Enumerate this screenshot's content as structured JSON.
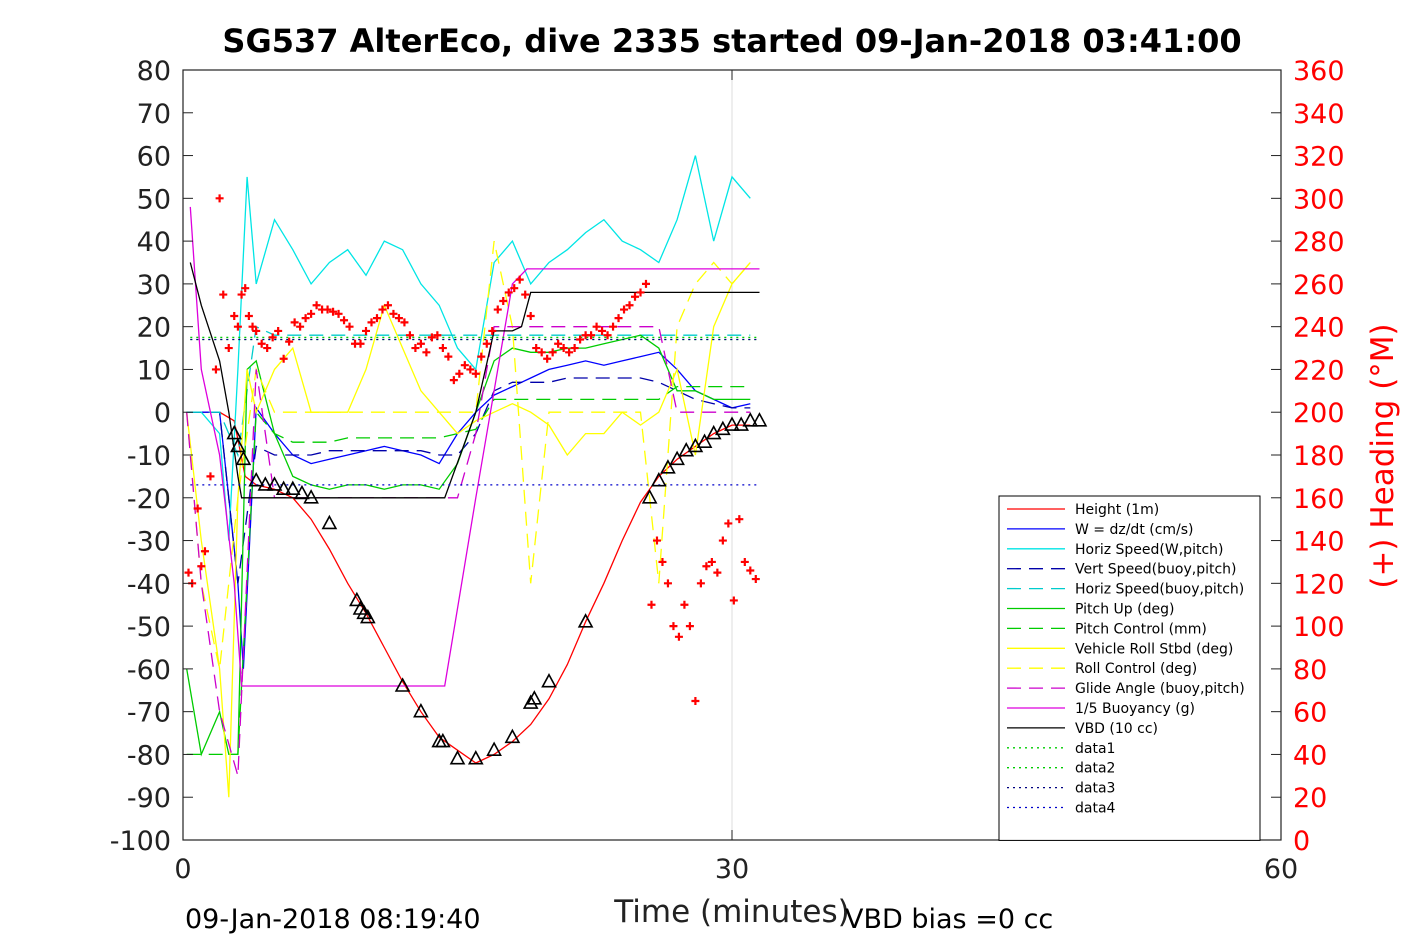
{
  "chart_data": {
    "type": "line",
    "title": "SG537 AlterEco, dive 2335 started 09-Jan-2018 03:41:00",
    "xlabel": "Time (minutes)",
    "ylabel_right": "(+) Heading (°M)",
    "xlim": [
      0,
      60
    ],
    "ylim": [
      -100,
      80
    ],
    "ylim_right": [
      0,
      360
    ],
    "x_ticks": [
      "0",
      "30",
      "60"
    ],
    "y_ticks": [
      "80",
      "70",
      "60",
      "50",
      "40",
      "30",
      "20",
      "10",
      "0",
      "-10",
      "-20",
      "-30",
      "-40",
      "-50",
      "-60",
      "-70",
      "-80",
      "-90",
      "-100"
    ],
    "y_ticks_right": [
      "360",
      "340",
      "320",
      "300",
      "280",
      "260",
      "240",
      "220",
      "200",
      "180",
      "160",
      "140",
      "120",
      "100",
      "80",
      "60",
      "40",
      "20",
      "0"
    ],
    "grid": "x-only at 30",
    "legend_placement": "lower-right",
    "footer_left": "09-Jan-2018 08:19:40",
    "footer_right": "VBD bias =0 cc",
    "series": [
      {
        "name": "Height (1m)",
        "color": "#ff0000",
        "dash": "solid",
        "x": [
          0.2,
          1,
          2,
          2.8,
          3.4,
          4,
          5,
          6,
          7,
          8,
          9,
          10,
          11,
          12,
          13,
          14,
          15,
          16,
          17,
          18,
          19,
          20,
          21,
          22,
          23,
          24,
          25,
          26,
          27,
          28,
          29,
          30,
          31
        ],
        "y": [
          0,
          0,
          0,
          -2,
          -15,
          -17,
          -18,
          -20,
          -25,
          -32,
          -40,
          -47,
          -55,
          -63,
          -70,
          -76,
          -79,
          -82,
          -80,
          -77,
          -73,
          -67,
          -59,
          -49,
          -40,
          -30,
          -21,
          -15,
          -11,
          -8,
          -5,
          -3,
          -3
        ]
      },
      {
        "name": "W = dz/dt (cm/s)",
        "color": "#0000ff",
        "dash": "solid",
        "x": [
          0.2,
          1,
          2,
          2.5,
          3,
          3.3,
          4,
          5,
          6,
          7,
          8,
          9,
          10,
          11,
          12,
          13,
          14,
          15,
          16,
          17,
          18,
          19,
          20,
          21,
          22,
          23,
          24,
          25,
          26,
          27,
          28,
          29,
          30,
          31
        ],
        "y": [
          0,
          0,
          0,
          -20,
          -40,
          -60,
          1,
          -5,
          -10,
          -12,
          -11,
          -10,
          -9,
          -8,
          -9,
          -10,
          -12,
          -5,
          0,
          4,
          6,
          8,
          10,
          11,
          12,
          11,
          12,
          13,
          14,
          10,
          5,
          3,
          1,
          2
        ]
      },
      {
        "name": "Horiz Speed(W,pitch)",
        "color": "#00e5e5",
        "dash": "solid",
        "x": [
          0.2,
          1,
          2,
          2.5,
          3,
          3.5,
          4,
          5,
          6,
          7,
          8,
          9,
          10,
          11,
          12,
          13,
          14,
          15,
          16,
          17,
          18,
          19,
          20,
          21,
          22,
          23,
          24,
          25,
          26,
          27,
          28,
          29,
          30,
          31
        ],
        "y": [
          0,
          0,
          -5,
          -30,
          10,
          55,
          30,
          45,
          38,
          30,
          35,
          38,
          32,
          40,
          38,
          30,
          25,
          15,
          10,
          35,
          40,
          30,
          35,
          38,
          42,
          45,
          40,
          38,
          35,
          45,
          60,
          40,
          55,
          50
        ]
      },
      {
        "name": "Vert Speed(buoy,pitch)",
        "color": "#0000aa",
        "dash": "long",
        "x": [
          0.2,
          1,
          2,
          3,
          4,
          5,
          6,
          7,
          8,
          9,
          10,
          11,
          12,
          13,
          14,
          15,
          16,
          17,
          18,
          19,
          20,
          21,
          22,
          23,
          24,
          25,
          26,
          27,
          28,
          29,
          30,
          31
        ],
        "y": [
          0,
          0,
          0,
          -40,
          -8,
          -10,
          -10,
          -10,
          -9,
          -9,
          -9,
          -9,
          -9,
          -9,
          -10,
          -10,
          -5,
          5,
          7,
          7,
          7,
          8,
          8,
          8,
          8,
          8,
          7,
          5,
          3,
          2,
          1,
          1
        ]
      },
      {
        "name": "Horiz Speed(buoy,pitch)",
        "color": "#00cccc",
        "dash": "long",
        "x": [
          0.2,
          1,
          2,
          3,
          4,
          5,
          6,
          7,
          8,
          9,
          10,
          11,
          12,
          13,
          14,
          15,
          16,
          17,
          18,
          19,
          20,
          21,
          22,
          23,
          24,
          25,
          26,
          27,
          28,
          29,
          30,
          31
        ],
        "y": [
          0,
          0,
          0,
          -10,
          20,
          18,
          18,
          18,
          18,
          18,
          18,
          18,
          18,
          18,
          18,
          18,
          18,
          18,
          18,
          18,
          18,
          18,
          18,
          18,
          18,
          18,
          18,
          18,
          18,
          18,
          18,
          18
        ]
      },
      {
        "name": "Pitch Up (deg)",
        "color": "#00cc00",
        "dash": "solid",
        "x": [
          0.2,
          1,
          2,
          2.5,
          3,
          3.5,
          4,
          5,
          6,
          7,
          8,
          9,
          10,
          11,
          12,
          13,
          14,
          15,
          16,
          17,
          18,
          19,
          20,
          21,
          22,
          23,
          24,
          25,
          26,
          27,
          28,
          29,
          30,
          31
        ],
        "y": [
          -60,
          -80,
          -70,
          -80,
          -80,
          10,
          12,
          -5,
          -15,
          -17,
          -18,
          -17,
          -17,
          -18,
          -17,
          -17,
          -18,
          -12,
          0,
          12,
          15,
          14,
          14,
          15,
          15,
          16,
          17,
          18,
          15,
          5,
          5,
          3,
          3,
          3
        ]
      },
      {
        "name": "Pitch Control (mm)",
        "color": "#00cc00",
        "dash": "long",
        "x": [
          0.2,
          1,
          2,
          3,
          4,
          5,
          6,
          7,
          8,
          9,
          10,
          11,
          12,
          13,
          14,
          15,
          16,
          17,
          18,
          19,
          20,
          21,
          22,
          23,
          24,
          25,
          26,
          27,
          28,
          29,
          30,
          31
        ],
        "y": [
          -80,
          -80,
          -80,
          -80,
          0,
          -5,
          -7,
          -7,
          -7,
          -6,
          -6,
          -6,
          -6,
          -6,
          -6,
          -5,
          -4,
          3,
          3,
          3,
          3,
          3,
          3,
          3,
          3,
          3,
          3,
          6,
          6,
          6,
          6,
          6
        ]
      },
      {
        "name": "Vehicle Roll Stbd (deg)",
        "color": "#ffff00",
        "dash": "solid",
        "x": [
          0.2,
          1,
          2,
          2.5,
          3,
          3.5,
          4,
          5,
          6,
          7,
          8,
          9,
          10,
          11,
          12,
          13,
          14,
          15,
          16,
          17,
          18,
          19,
          20,
          21,
          22,
          23,
          24,
          25,
          26,
          27,
          28,
          29,
          30,
          31
        ],
        "y": [
          0,
          -30,
          -60,
          -90,
          -20,
          10,
          0,
          10,
          15,
          0,
          0,
          0,
          10,
          25,
          15,
          5,
          0,
          -5,
          -2,
          0,
          2,
          0,
          -3,
          -10,
          -5,
          -5,
          0,
          -3,
          0,
          10,
          -10,
          20,
          30,
          35
        ]
      },
      {
        "name": "Roll Control (deg)",
        "color": "#ffff00",
        "dash": "long",
        "x": [
          0.2,
          1,
          2,
          3,
          4,
          5,
          6,
          7,
          8,
          9,
          10,
          11,
          12,
          13,
          14,
          15,
          16,
          17,
          18,
          19,
          20,
          21,
          22,
          23,
          24,
          25,
          26,
          27,
          28,
          29,
          30,
          31
        ],
        "y": [
          0,
          -40,
          -60,
          -20,
          10,
          0,
          0,
          0,
          0,
          0,
          0,
          0,
          0,
          0,
          0,
          0,
          0,
          40,
          20,
          -40,
          0,
          0,
          0,
          0,
          0,
          0,
          -40,
          20,
          30,
          35,
          30,
          35
        ]
      },
      {
        "name": "Glide Angle (buoy,pitch)",
        "color": "#cc00cc",
        "dash": "long",
        "x": [
          0.2,
          1,
          2,
          3,
          4,
          5,
          6,
          7,
          8,
          9,
          10,
          11,
          12,
          13,
          14,
          15,
          16,
          17,
          18,
          19,
          20,
          21,
          22,
          23,
          24,
          25,
          26,
          27,
          28,
          29,
          30,
          31
        ],
        "y": [
          0,
          -40,
          -70,
          -85,
          10,
          -20,
          -20,
          -20,
          -20,
          -20,
          -20,
          -20,
          -20,
          -20,
          -20,
          -20,
          -5,
          20,
          20,
          20,
          20,
          20,
          20,
          20,
          20,
          20,
          20,
          0,
          0,
          0,
          0,
          0
        ]
      },
      {
        "name": "1/5 Buoyancy (g)",
        "color": "#dd00dd",
        "dash": "solid",
        "x": [
          0.4,
          1,
          2,
          2.8,
          3.2,
          4,
          6,
          8,
          10,
          12,
          14,
          14.3,
          16,
          18,
          18.8,
          20,
          22,
          24,
          26,
          28,
          30,
          31.5
        ],
        "y": [
          48,
          10,
          -10,
          -40,
          -64,
          -64,
          -64,
          -64,
          -64,
          -64,
          -64,
          -64,
          -20,
          30,
          33.5,
          33.5,
          33.5,
          33.5,
          33.5,
          33.5,
          33.5,
          33.5
        ]
      },
      {
        "name": "VBD (10 cc)",
        "color": "#000000",
        "dash": "solid",
        "x": [
          0.4,
          1,
          2,
          2.5,
          3,
          3.2,
          4,
          6,
          8,
          10,
          12,
          14,
          14.3,
          16,
          17,
          18,
          18.5,
          19,
          20,
          22,
          24,
          26,
          28,
          30,
          31.5
        ],
        "y": [
          35,
          25,
          12,
          0,
          -15,
          -20,
          -20,
          -20,
          -20,
          -20,
          -20,
          -20,
          -20,
          0,
          19,
          19,
          20,
          28,
          28,
          28,
          28,
          28,
          28,
          28,
          28
        ]
      },
      {
        "name": "data1",
        "color": "#00cc00",
        "dash": "dot",
        "x": [
          0.4,
          31.5
        ],
        "y": [
          17.5,
          17.5
        ]
      },
      {
        "name": "data2",
        "color": "#00cc00",
        "dash": "dot",
        "x": [
          0.4,
          31.5
        ],
        "y": [
          17,
          17
        ]
      },
      {
        "name": "data3",
        "color": "#000080",
        "dash": "dot",
        "x": [
          0.4,
          31.5
        ],
        "y": [
          17,
          17
        ]
      },
      {
        "name": "data4",
        "color": "#0000cc",
        "dash": "dot",
        "x": [
          0.4,
          31.5
        ],
        "y": [
          -17,
          -17
        ]
      }
    ],
    "heading_series": {
      "color": "#ff0000",
      "marker": "+",
      "x": [
        0.3,
        0.5,
        0.8,
        1.0,
        1.2,
        1.5,
        1.8,
        2.0,
        2.2,
        2.5,
        2.8,
        3.0,
        3.2,
        3.4,
        3.6,
        3.8,
        4.0,
        4.3,
        4.6,
        4.9,
        5.2,
        5.5,
        5.8,
        6.1,
        6.4,
        6.7,
        7.0,
        7.3,
        7.6,
        7.9,
        8.2,
        8.5,
        8.8,
        9.1,
        9.4,
        9.7,
        10.0,
        10.3,
        10.6,
        10.9,
        11.2,
        11.5,
        11.8,
        12.1,
        12.4,
        12.7,
        13.0,
        13.3,
        13.6,
        13.9,
        14.2,
        14.5,
        14.8,
        15.1,
        15.4,
        15.7,
        16.0,
        16.3,
        16.6,
        16.9,
        17.2,
        17.5,
        17.8,
        18.1,
        18.4,
        18.7,
        19.0,
        19.3,
        19.6,
        19.9,
        20.2,
        20.5,
        20.8,
        21.1,
        21.4,
        21.7,
        22.0,
        22.3,
        22.6,
        22.9,
        23.2,
        23.5,
        23.8,
        24.1,
        24.4,
        24.7,
        25.0,
        25.3,
        25.6,
        25.9,
        26.2,
        26.5,
        26.8,
        27.1,
        27.4,
        27.7,
        28.0,
        28.3,
        28.6,
        28.9,
        29.2,
        29.5,
        29.8,
        30.1,
        30.4,
        30.7,
        31.0,
        31.3
      ],
      "y": [
        125,
        120,
        155,
        128,
        135,
        170,
        220,
        300,
        255,
        230,
        245,
        240,
        255,
        258,
        245,
        240,
        238,
        232,
        230,
        235,
        238,
        225,
        233,
        242,
        240,
        244,
        246,
        250,
        248,
        248,
        247,
        246,
        243,
        240,
        232,
        232,
        238,
        242,
        244,
        248,
        250,
        246,
        244,
        242,
        236,
        230,
        232,
        228,
        235,
        236,
        230,
        226,
        215,
        218,
        222,
        220,
        218,
        226,
        232,
        238,
        248,
        252,
        256,
        258,
        262,
        255,
        245,
        230,
        228,
        225,
        228,
        232,
        230,
        228,
        230,
        234,
        236,
        236,
        240,
        238,
        236,
        240,
        244,
        248,
        250,
        254,
        256,
        260,
        110,
        140,
        130,
        120,
        100,
        95,
        110,
        100,
        65,
        120,
        128,
        130,
        125,
        140,
        148,
        112,
        150,
        130,
        126,
        122
      ]
    },
    "markers": {
      "color": "#000000",
      "shape": "triangle",
      "x": [
        2.8,
        3.0,
        3.3,
        4.0,
        4.5,
        5.0,
        5.5,
        6.0,
        6.5,
        7.0,
        8.0,
        9.5,
        9.7,
        9.9,
        10.1,
        12.0,
        13.0,
        14.0,
        14.2,
        15.0,
        16.0,
        17.0,
        18.0,
        19.0,
        19.2,
        20.0,
        22.0,
        25.5,
        26.0,
        26.5,
        27.0,
        27.5,
        28.0,
        28.5,
        29.0,
        29.5,
        30.0,
        30.5,
        31.0,
        31.5
      ],
      "y": [
        -5,
        -8,
        -11,
        -16,
        -17,
        -17,
        -18,
        -18,
        -19,
        -20,
        -26,
        -44,
        -46,
        -47,
        -48,
        -64,
        -70,
        -77,
        -77,
        -81,
        -81,
        -79,
        -76,
        -68,
        -67,
        -63,
        -49,
        -20,
        -16,
        -13,
        -11,
        -9,
        -8,
        -7,
        -5,
        -4,
        -3,
        -3,
        -2,
        -2
      ]
    }
  }
}
